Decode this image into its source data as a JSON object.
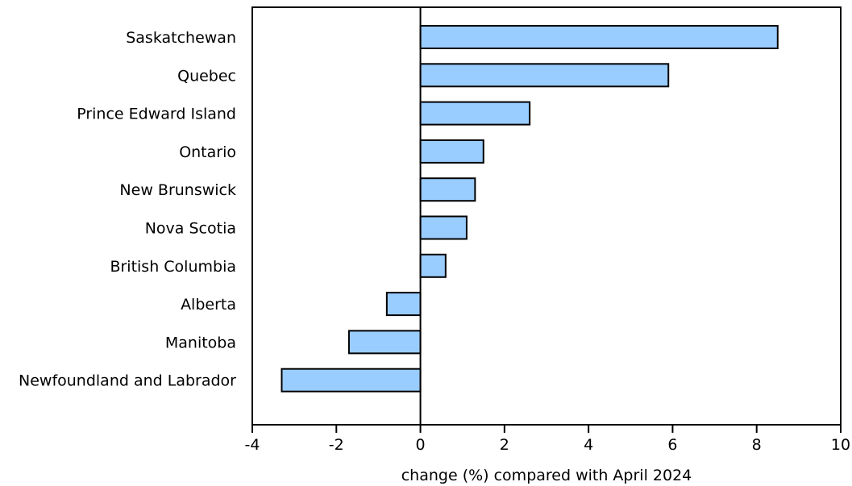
{
  "chart_data": {
    "type": "bar",
    "orientation": "horizontal",
    "categories": [
      "Saskatchewan",
      "Quebec",
      "Prince Edward Island",
      "Ontario",
      "New Brunswick",
      "Nova Scotia",
      "British Columbia",
      "Alberta",
      "Manitoba",
      "Newfoundland and Labrador"
    ],
    "values": [
      8.5,
      5.9,
      2.6,
      1.5,
      1.3,
      1.1,
      0.6,
      -0.8,
      -1.7,
      -3.3
    ],
    "title": "",
    "xlabel": "change (%) compared with April 2024",
    "ylabel": "",
    "xlim": [
      -4,
      10
    ],
    "xticks": [
      -4,
      -2,
      0,
      2,
      4,
      6,
      8,
      10
    ],
    "grid": false,
    "legend": "none",
    "bar_color": "#99ccff",
    "bar_edge_color": "#000000"
  }
}
